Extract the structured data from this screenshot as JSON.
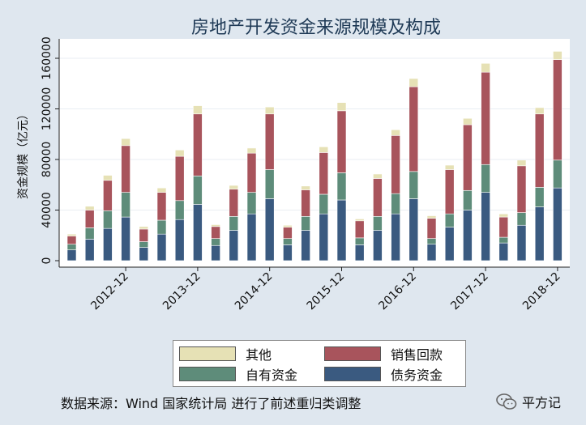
{
  "chart_data": {
    "type": "bar",
    "stacked": true,
    "title": "房地产开发资金来源规模及构成",
    "ylabel": "资金规模（亿元）",
    "ylim": [
      0,
      170000
    ],
    "yticks": [
      0,
      40000,
      80000,
      120000,
      160000
    ],
    "xtick_labels": [
      "2012-12",
      "2013-12",
      "2014-12",
      "2015-12",
      "2016-12",
      "2017-12",
      "2018-12"
    ],
    "xtick_positions": [
      3,
      7,
      11,
      15,
      19,
      23,
      27
    ],
    "bar_count": 28,
    "series": [
      {
        "name": "债务资金",
        "color": "#3a5a80",
        "values": [
          8500,
          17000,
          25500,
          34500,
          10500,
          21000,
          32500,
          44500,
          12000,
          24000,
          37000,
          49000,
          12500,
          24000,
          37000,
          48000,
          12500,
          24000,
          37000,
          49000,
          13000,
          26500,
          40000,
          54000,
          14000,
          28000,
          42500,
          57500
        ]
      },
      {
        "name": "自有资金",
        "color": "#5e8c7a",
        "values": [
          4500,
          9000,
          14000,
          19500,
          4500,
          11000,
          15000,
          22500,
          5500,
          11000,
          17000,
          23000,
          5000,
          11000,
          15500,
          21500,
          5500,
          11000,
          16000,
          21500,
          4500,
          10500,
          15500,
          22000,
          4500,
          10000,
          15500,
          22000
        ]
      },
      {
        "name": "销售回款",
        "color": "#a8545c",
        "values": [
          6500,
          14000,
          24000,
          37000,
          10000,
          22000,
          35000,
          49000,
          9500,
          21500,
          31000,
          44000,
          9000,
          21000,
          33000,
          49000,
          13500,
          30000,
          46000,
          67000,
          16000,
          35000,
          52000,
          73000,
          16000,
          37000,
          58000,
          79500
        ]
      },
      {
        "name": "其他",
        "color": "#e6e1b5",
        "values": [
          1500,
          3000,
          4000,
          5500,
          2000,
          3500,
          5000,
          6500,
          1500,
          3000,
          4000,
          5500,
          1500,
          3000,
          4500,
          6500,
          1500,
          3500,
          4500,
          6500,
          2000,
          3500,
          5000,
          7000,
          2500,
          4500,
          5000,
          6500
        ]
      }
    ],
    "legend": {
      "placement": "bottom",
      "order": [
        "其他",
        "销售回款",
        "自有资金",
        "债务资金"
      ]
    },
    "grid": true
  },
  "source_text": "数据来源：Wind 国家统计局 进行了前述重归类调整",
  "brand_text": "平方记"
}
